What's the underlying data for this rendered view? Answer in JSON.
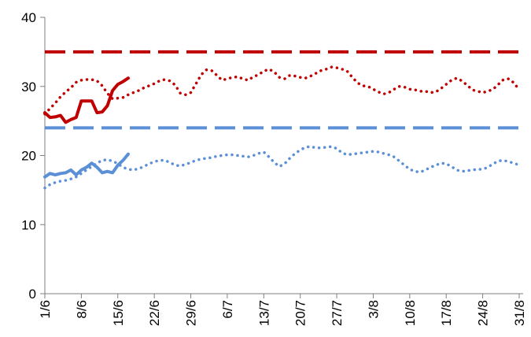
{
  "chart_data": {
    "type": "line",
    "title": "",
    "xlabel": "",
    "ylabel": "",
    "ylim": [
      0,
      40
    ],
    "yticks": [
      0,
      10,
      20,
      30,
      40
    ],
    "xlim": [
      0,
      91
    ],
    "x_ticks": [
      {
        "x": 0,
        "label": "1/6"
      },
      {
        "x": 7,
        "label": "8/6"
      },
      {
        "x": 14,
        "label": "15/6"
      },
      {
        "x": 21,
        "label": "22/6"
      },
      {
        "x": 28,
        "label": "29/6"
      },
      {
        "x": 35,
        "label": "6/7"
      },
      {
        "x": 42,
        "label": "13/7"
      },
      {
        "x": 49,
        "label": "20/7"
      },
      {
        "x": 56,
        "label": "27/7"
      },
      {
        "x": 63,
        "label": "3/8"
      },
      {
        "x": 70,
        "label": "10/8"
      },
      {
        "x": 77,
        "label": "17/8"
      },
      {
        "x": 84,
        "label": "24/8"
      },
      {
        "x": 91,
        "label": "31/8"
      }
    ],
    "grid": false,
    "legend": "none",
    "series": [
      {
        "style": "dashed",
        "color": "#c00000",
        "x": [
          0,
          91
        ],
        "values": [
          35,
          35
        ]
      },
      {
        "style": "dashed",
        "color": "#5b8fd6",
        "x": [
          0,
          91
        ],
        "values": [
          24,
          24
        ]
      },
      {
        "style": "dotted",
        "color": "#c00000",
        "x": [
          0,
          1,
          2,
          3,
          4,
          5,
          6,
          7,
          8,
          9,
          10,
          11,
          12,
          13,
          14,
          15,
          16,
          17,
          18,
          19,
          20,
          21,
          22,
          23,
          24,
          25,
          26,
          27,
          28,
          29,
          30,
          31,
          32,
          33,
          34,
          35,
          36,
          37,
          38,
          39,
          40,
          41,
          42,
          43,
          44,
          45,
          46,
          47,
          48,
          49,
          50,
          51,
          52,
          53,
          54,
          55,
          56,
          57,
          58,
          59,
          60,
          61,
          62,
          63,
          64,
          65,
          66,
          67,
          68,
          69,
          70,
          71,
          72,
          73,
          74,
          75,
          76,
          77,
          78,
          79,
          80,
          81,
          82,
          83,
          84,
          85,
          86,
          87,
          88,
          89,
          90,
          91
        ],
        "values": [
          26,
          26.8,
          27.6,
          28.5,
          29.2,
          29.8,
          30.6,
          30.9,
          31,
          31,
          30.8,
          30.1,
          29,
          28.2,
          28.3,
          28.4,
          28.8,
          29.1,
          29.4,
          29.8,
          30.1,
          30.4,
          30.8,
          31,
          30.8,
          30.2,
          29,
          28.8,
          29.1,
          30.4,
          31.7,
          32.4,
          32.3,
          31.6,
          30.9,
          31.1,
          31.3,
          31.4,
          31.1,
          30.9,
          31.4,
          31.7,
          32.2,
          32.5,
          32.1,
          31.3,
          31.1,
          31.6,
          31.5,
          31.3,
          31.2,
          31.5,
          31.9,
          32.3,
          32.5,
          32.8,
          32.7,
          32.5,
          32.2,
          31.3,
          30.5,
          30.1,
          30.0,
          29.6,
          29.2,
          28.9,
          29.1,
          29.6,
          30,
          29.9,
          29.6,
          29.5,
          29.3,
          29.3,
          29.1,
          29.2,
          29.7,
          30.3,
          30.9,
          31.2,
          30.8,
          30.2,
          29.5,
          29.3,
          29.1,
          29.3,
          29.6,
          30.3,
          31,
          31.1,
          30.5,
          29.5
        ]
      },
      {
        "style": "dotted",
        "color": "#5b8fd6",
        "x": [
          0,
          1,
          2,
          3,
          4,
          5,
          6,
          7,
          8,
          9,
          10,
          11,
          12,
          13,
          14,
          15,
          16,
          17,
          18,
          19,
          20,
          21,
          22,
          23,
          24,
          25,
          26,
          27,
          28,
          29,
          30,
          31,
          32,
          33,
          34,
          35,
          36,
          37,
          38,
          39,
          40,
          41,
          42,
          43,
          44,
          45,
          46,
          47,
          48,
          49,
          50,
          51,
          52,
          53,
          54,
          55,
          56,
          57,
          58,
          59,
          60,
          61,
          62,
          63,
          64,
          65,
          66,
          67,
          68,
          69,
          70,
          71,
          72,
          73,
          74,
          75,
          76,
          77,
          78,
          79,
          80,
          81,
          82,
          83,
          84,
          85,
          86,
          87,
          88,
          89,
          90,
          91
        ],
        "values": [
          15.3,
          15.8,
          16.1,
          16.3,
          16.4,
          16.6,
          16.9,
          17.4,
          17.9,
          18.4,
          18.9,
          19.3,
          19.4,
          19.2,
          18.8,
          18.3,
          18.0,
          17.9,
          18.1,
          18.4,
          18.8,
          19.1,
          19.3,
          19.3,
          19.0,
          18.6,
          18.5,
          18.7,
          19.0,
          19.3,
          19.5,
          19.6,
          19.7,
          19.9,
          20.0,
          20.1,
          20.1,
          20.0,
          19.9,
          19.8,
          20.0,
          20.3,
          20.5,
          19.8,
          19.0,
          18.4,
          18.8,
          19.6,
          20.3,
          20.8,
          21.2,
          21.3,
          21.1,
          21.1,
          21.2,
          21.3,
          21.0,
          20.4,
          20.1,
          20.2,
          20.3,
          20.4,
          20.5,
          20.6,
          20.5,
          20.3,
          20.1,
          19.8,
          19.2,
          18.6,
          18.0,
          17.7,
          17.6,
          17.9,
          18.3,
          18.6,
          18.9,
          18.8,
          18.4,
          17.9,
          17.7,
          17.8,
          17.9,
          18.0,
          18.0,
          18.3,
          18.8,
          19.2,
          19.3,
          19.1,
          18.9,
          18.6
        ]
      },
      {
        "style": "solid",
        "color": "#c00000",
        "x": [
          0,
          1,
          2,
          3,
          4,
          5,
          6,
          7,
          8,
          9,
          10,
          11,
          12,
          13,
          14,
          15,
          16
        ],
        "values": [
          26.2,
          25.5,
          25.6,
          25.8,
          24.8,
          25.2,
          25.5,
          27.9,
          27.9,
          27.9,
          26.2,
          26.3,
          27.2,
          29.4,
          30.3,
          30.7,
          31.2
        ]
      },
      {
        "style": "solid",
        "color": "#5b8fd6",
        "x": [
          0,
          1,
          2,
          3,
          4,
          5,
          6,
          7,
          8,
          9,
          10,
          11,
          12,
          13,
          14,
          15,
          16
        ],
        "values": [
          16.9,
          17.4,
          17.2,
          17.4,
          17.5,
          17.9,
          17.2,
          17.9,
          18.3,
          18.9,
          18.3,
          17.5,
          17.7,
          17.5,
          18.6,
          19.3,
          20.2
        ]
      }
    ]
  }
}
